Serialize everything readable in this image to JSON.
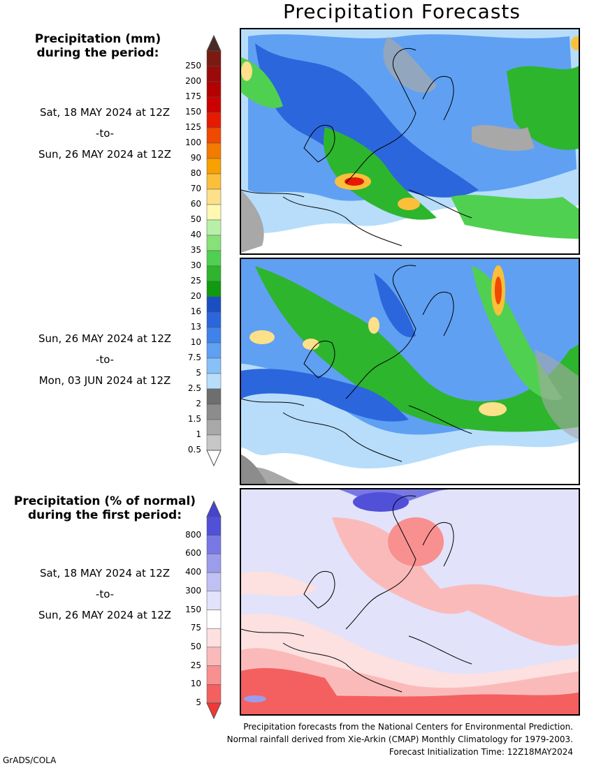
{
  "title": "Precipitation Forecasts",
  "legend_mm": {
    "header_line1": "Precipitation (mm)",
    "header_line2": "during the period:",
    "levels": [
      "250",
      "200",
      "175",
      "150",
      "125",
      "100",
      "90",
      "80",
      "70",
      "60",
      "50",
      "40",
      "35",
      "30",
      "25",
      "20",
      "16",
      "13",
      "10",
      "7.5",
      "5",
      "2.5",
      "2",
      "1.5",
      "1",
      "0.5"
    ],
    "colors": [
      "#7a1a12",
      "#9a0a0a",
      "#b40000",
      "#cc0000",
      "#e61a00",
      "#f04a00",
      "#f57a00",
      "#f7a000",
      "#fbbf3a",
      "#fde08a",
      "#fff8b0",
      "#b8f0a8",
      "#88e078",
      "#50d050",
      "#2db52d",
      "#119a11",
      "#1a4fc4",
      "#2b66dc",
      "#3f82ea",
      "#5fa0f2",
      "#88c0f8",
      "#b7ddfb",
      "#6e6e6e",
      "#8c8c8c",
      "#a8a8a8",
      "#c6c6c6"
    ],
    "top_arrow_color": "#4a2a26",
    "bottom_arrow_color": "#ffffff"
  },
  "period1": {
    "from": "Sat, 18 MAY 2024 at 12Z",
    "sep": "-to-",
    "to": "Sun, 26 MAY 2024 at 12Z"
  },
  "period2": {
    "from": "Sun, 26 MAY 2024 at 12Z",
    "sep": "-to-",
    "to": "Mon, 03 JUN 2024 at 12Z"
  },
  "legend_pct": {
    "header_line1": "Precipitation (% of normal)",
    "header_line2": "during the first period:",
    "levels": [
      "800",
      "600",
      "400",
      "300",
      "150",
      "75",
      "50",
      "25",
      "10",
      "5"
    ],
    "colors": [
      "#5050d8",
      "#7878e4",
      "#9c9cec",
      "#c0c0f4",
      "#e2e2fa",
      "#ffffff",
      "#fde0e0",
      "#fbbaba",
      "#f89090",
      "#f46060"
    ],
    "top_arrow_color": "#4444d0",
    "bottom_arrow_color": "#f03838"
  },
  "period3": {
    "from": "Sat, 18 MAY 2024 at 12Z",
    "sep": "-to-",
    "to": "Sun, 26 MAY 2024 at 12Z"
  },
  "footer": {
    "line1": "Precipitation forecasts from the National Centers for Environmental Prediction.",
    "line2": "Normal rainfall derived from Xie-Arkin (CMAP) Monthly Climatology for 1979-2003.",
    "line3": "Forecast Initialization Time: 12Z18MAY2024"
  },
  "credit": "GrADS/COLA"
}
